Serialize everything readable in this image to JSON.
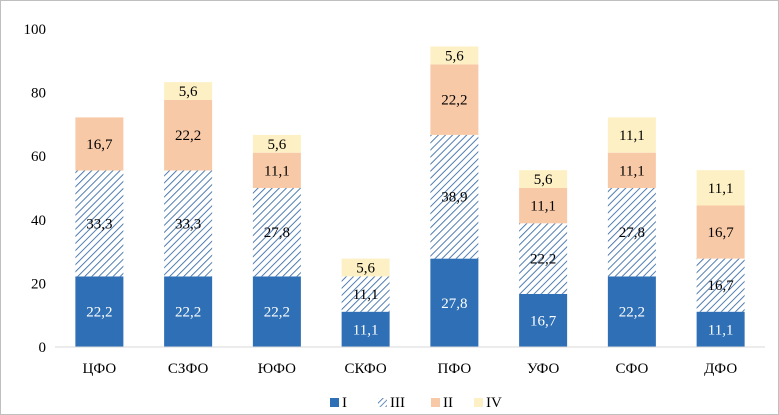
{
  "chart_data": {
    "type": "bar",
    "stacked": true,
    "categories": [
      "ЦФО",
      "СЗФО",
      "ЮФО",
      "СКФО",
      "ПФО",
      "УФО",
      "СФО",
      "ДФО"
    ],
    "series": [
      {
        "name": "I",
        "values": [
          "22,2",
          "22,2",
          "22,2",
          "11,1",
          "27,8",
          "16,7",
          "22,2",
          "11,1"
        ],
        "num": [
          22.2,
          22.2,
          22.2,
          11.1,
          27.8,
          16.7,
          22.2,
          11.1
        ],
        "color": "#2e6fb5",
        "pattern": "solid"
      },
      {
        "name": "III",
        "values": [
          "33,3",
          "33,3",
          "27,8",
          "11,1",
          "38,9",
          "22,2",
          "27,8",
          "16,7"
        ],
        "num": [
          33.3,
          33.3,
          27.8,
          11.1,
          38.9,
          22.2,
          27.8,
          16.7
        ],
        "color": "#3d6fa8",
        "pattern": "hatch"
      },
      {
        "name": "II",
        "values": [
          "16,7",
          "22,2",
          "11,1",
          null,
          "22,2",
          "11,1",
          "11,1",
          "16,7"
        ],
        "num": [
          16.7,
          22.2,
          11.1,
          0,
          22.2,
          11.1,
          11.1,
          16.7
        ],
        "color": "#f7c9a6",
        "pattern": "solid"
      },
      {
        "name": "IV",
        "values": [
          null,
          "5,6",
          "5,6",
          "5,6",
          "5,6",
          "5,6",
          "11,1",
          "11,1"
        ],
        "num": [
          0,
          5.6,
          5.6,
          5.6,
          5.6,
          5.6,
          11.1,
          11.1
        ],
        "color": "#fdf0c4",
        "pattern": "solid"
      }
    ],
    "yticks": [
      "0",
      "20",
      "40",
      "60",
      "80",
      "100"
    ],
    "ylim": [
      0,
      100
    ],
    "legend_position": "bottom",
    "grid": false
  }
}
